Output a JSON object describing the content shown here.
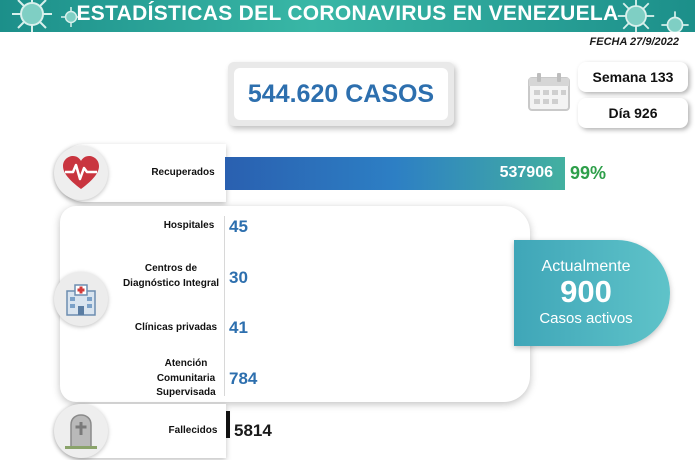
{
  "header": {
    "title": "ESTADÍSTICAS DEL CORONAVIRUS EN VENEZUELA",
    "bg_color": "#1c8f8a"
  },
  "date": "FECHA 27/9/2022",
  "total_cases": "544.620 CASOS",
  "week": "Semana 133",
  "day": "Día 926",
  "recovered": {
    "label": "Recuperados",
    "value": "537906",
    "percent": "99%",
    "icon": "heart-pulse-icon"
  },
  "care": {
    "icon": "hospital-icon",
    "rows": [
      {
        "label": "Hospitales",
        "value": "45"
      },
      {
        "label": "Centros de Diagnóstico Integral",
        "value": "30"
      },
      {
        "label": "Clínicas privadas",
        "value": "41"
      },
      {
        "label": "Atención Comunitaria Supervisada",
        "value": "784"
      }
    ]
  },
  "active": {
    "line1": "Actualmente",
    "number": "900",
    "line2": "Casos activos"
  },
  "deaths": {
    "label": "Fallecidos",
    "value": "5814",
    "icon": "tombstone-icon"
  }
}
